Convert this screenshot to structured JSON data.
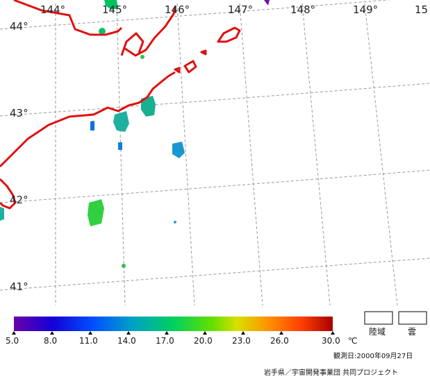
{
  "map": {
    "longitude_labels": [
      "144°",
      "145°",
      "146°",
      "147°",
      "148°",
      "149°",
      "15"
    ],
    "latitude_labels": [
      "44°",
      "43°",
      "42°",
      "41°"
    ],
    "colors": {
      "coast": "#e01010",
      "grid": "#999999"
    }
  },
  "colorbar": {
    "ticks": [
      "5.0",
      "8.0",
      "11.0",
      "14.0",
      "17.0",
      "20.0",
      "23.0",
      "26.0",
      "30.0"
    ],
    "unit": "℃",
    "colors": [
      "#6a00a8",
      "#1400d8",
      "#0050ff",
      "#00a0c8",
      "#00d060",
      "#60e000",
      "#d8e000",
      "#ff9000",
      "#ff4000",
      "#a80000"
    ]
  },
  "legend": {
    "land": "陸域",
    "cloud": "雲"
  },
  "observation_date": "観測日:2000年09月27日",
  "credit": "岩手県／宇宙開発事業団 共同プロジェクト"
}
